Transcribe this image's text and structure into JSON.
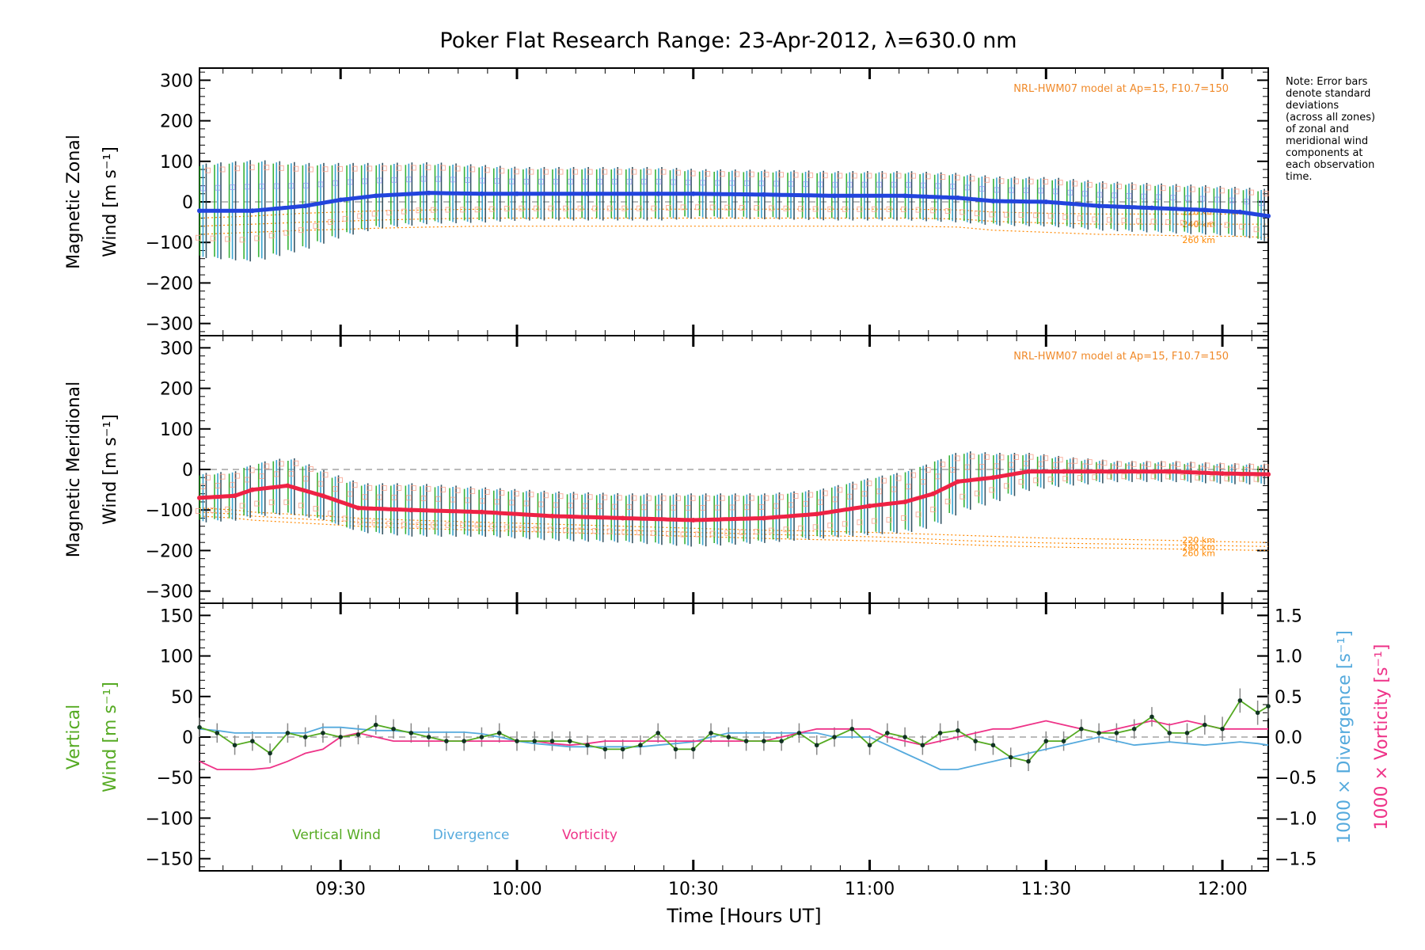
{
  "title": "Poker Flat Research Range: 23-Apr-2012, λ=630.0 nm",
  "note": "Note: Error bars\ndenote standard\ndeviations\n(across all zones)\nof zonal and\nmeridional wind\ncomponents at\neach observation\ntime.",
  "colors": {
    "zonal": "#2244dd",
    "meridional": "#ee2244",
    "model": "#ff8800",
    "model_text": "#f08a2a",
    "zone_zonal": "#9999ee",
    "zone_merid": "#f7a08a",
    "errbar_green": "#22aa22",
    "errbar_blue": "#2299cc",
    "errbar_dark": "#224455",
    "vertical": "#55aa22",
    "divergence": "#55aadd",
    "vorticity": "#ee3388",
    "vert_errbar": "#888888"
  },
  "xaxis": {
    "label": "Time [Hours UT]",
    "ticks": [
      "09:30",
      "10:00",
      "10:30",
      "11:00",
      "11:30",
      "12:00"
    ],
    "tick_hours": [
      9.5,
      10.0,
      10.5,
      11.0,
      11.5,
      12.0
    ],
    "range_hours": [
      9.1,
      12.13
    ]
  },
  "chart_data": [
    {
      "type": "line",
      "panel": "zonal",
      "ylabel_line1": "Magnetic Zonal",
      "ylabel_line2": "Wind [m s⁻¹]",
      "ylim": [
        -330,
        330
      ],
      "yticks": [
        300,
        200,
        100,
        0,
        -100,
        -200,
        -300
      ],
      "model_text": "NRL-HWM07 model at Ap=15, F10.7=150",
      "model_labels": [
        "220 km",
        "240 km",
        "260 km"
      ],
      "x_hours": [
        9.1,
        9.25,
        9.4,
        9.5,
        9.6,
        9.75,
        9.9,
        10.0,
        10.2,
        10.4,
        10.5,
        10.7,
        10.9,
        11.1,
        11.25,
        11.35,
        11.5,
        11.65,
        11.8,
        11.95,
        12.05,
        12.13
      ],
      "series": [
        {
          "values": [
            -22,
            -22,
            -10,
            5,
            15,
            22,
            20,
            20,
            20,
            20,
            20,
            18,
            15,
            15,
            10,
            2,
            0,
            -10,
            -15,
            -20,
            -25,
            -35
          ],
          "errors": [
            110,
            120,
            100,
            85,
            75,
            70,
            65,
            60,
            60,
            60,
            55,
            55,
            55,
            55,
            55,
            55,
            55,
            55,
            55,
            55,
            55,
            60
          ]
        }
      ],
      "model_curves": [
        {
          "label": "220 km",
          "values": [
            -40,
            -35,
            -28,
            -25,
            -22,
            -20,
            -18,
            -18,
            -18,
            -18,
            -18,
            -18,
            -18,
            -18,
            -20,
            -25,
            -28,
            -30,
            -30,
            -30,
            -30,
            -30
          ]
        },
        {
          "label": "240 km",
          "values": [
            -60,
            -55,
            -50,
            -48,
            -45,
            -42,
            -40,
            -40,
            -40,
            -40,
            -40,
            -40,
            -40,
            -40,
            -42,
            -48,
            -52,
            -55,
            -55,
            -55,
            -55,
            -55
          ]
        },
        {
          "label": "260 km",
          "values": [
            -80,
            -75,
            -70,
            -68,
            -65,
            -62,
            -60,
            -60,
            -60,
            -60,
            -60,
            -60,
            -60,
            -60,
            -62,
            -70,
            -75,
            -80,
            -82,
            -85,
            -85,
            -88
          ]
        }
      ]
    },
    {
      "type": "line",
      "panel": "meridional",
      "ylabel_line1": "Magnetic Meridional",
      "ylabel_line2": "Wind [m s⁻¹]",
      "ylim": [
        -330,
        330
      ],
      "yticks": [
        300,
        200,
        100,
        0,
        -100,
        -200,
        -300
      ],
      "model_text": "NRL-HWM07 model at Ap=15, F10.7=150",
      "model_labels": [
        "220 km",
        "240 km",
        "260 km"
      ],
      "x_hours": [
        9.1,
        9.2,
        9.25,
        9.35,
        9.45,
        9.55,
        9.7,
        9.9,
        10.1,
        10.3,
        10.5,
        10.7,
        10.85,
        11.0,
        11.1,
        11.18,
        11.25,
        11.35,
        11.45,
        11.55,
        11.7,
        11.85,
        12.0,
        12.13
      ],
      "series": [
        {
          "values": [
            -70,
            -65,
            -50,
            -40,
            -65,
            -95,
            -100,
            -105,
            -115,
            -120,
            -125,
            -120,
            -110,
            -90,
            -80,
            -60,
            -30,
            -20,
            -5,
            -5,
            -5,
            -5,
            -10,
            -12
          ],
          "errors": [
            55,
            55,
            60,
            65,
            55,
            55,
            60,
            55,
            55,
            55,
            60,
            55,
            55,
            65,
            70,
            75,
            70,
            55,
            40,
            30,
            20,
            20,
            20,
            20
          ]
        }
      ],
      "model_curves": [
        {
          "label": "220 km",
          "values": [
            -95,
            -100,
            -105,
            -110,
            -115,
            -120,
            -125,
            -130,
            -135,
            -140,
            -145,
            -150,
            -152,
            -155,
            -158,
            -160,
            -162,
            -165,
            -168,
            -170,
            -172,
            -175,
            -178,
            -180
          ]
        },
        {
          "label": "240 km",
          "values": [
            -105,
            -110,
            -115,
            -120,
            -125,
            -130,
            -135,
            -140,
            -145,
            -150,
            -155,
            -160,
            -163,
            -166,
            -169,
            -172,
            -175,
            -178,
            -180,
            -182,
            -184,
            -186,
            -188,
            -190
          ]
        },
        {
          "label": "260 km",
          "values": [
            -115,
            -120,
            -125,
            -130,
            -135,
            -140,
            -145,
            -150,
            -155,
            -160,
            -165,
            -170,
            -173,
            -176,
            -179,
            -182,
            -185,
            -188,
            -190,
            -192,
            -194,
            -196,
            -198,
            -200
          ]
        }
      ]
    },
    {
      "type": "line",
      "panel": "vertical",
      "ylabel_line1": "Vertical",
      "ylabel_line2": "Wind [m s⁻¹]",
      "ylim": [
        -165,
        165
      ],
      "yticks": [
        150,
        100,
        50,
        0,
        -50,
        -100,
        -150
      ],
      "y2label_div": "1000 × Divergence [s⁻¹]",
      "y2label_vort": "1000 × Vorticity [s⁻¹]",
      "y2lim": [
        -1.65,
        1.65
      ],
      "y2ticks": [
        1.5,
        1.0,
        0.5,
        0.0,
        -0.5,
        -1.0,
        -1.5
      ],
      "legend": [
        "Vertical Wind",
        "Divergence",
        "Vorticity"
      ],
      "x_hours": [
        9.1,
        9.15,
        9.2,
        9.25,
        9.3,
        9.35,
        9.4,
        9.45,
        9.5,
        9.55,
        9.6,
        9.65,
        9.7,
        9.75,
        9.8,
        9.85,
        9.9,
        9.95,
        10.0,
        10.05,
        10.1,
        10.15,
        10.2,
        10.25,
        10.3,
        10.35,
        10.4,
        10.45,
        10.5,
        10.55,
        10.6,
        10.65,
        10.7,
        10.75,
        10.8,
        10.85,
        10.9,
        10.95,
        11.0,
        11.05,
        11.1,
        11.15,
        11.2,
        11.25,
        11.3,
        11.35,
        11.4,
        11.45,
        11.5,
        11.55,
        11.6,
        11.65,
        11.7,
        11.75,
        11.8,
        11.85,
        11.9,
        11.95,
        12.0,
        12.05,
        12.1,
        12.13
      ],
      "series": [
        {
          "name": "Vertical Wind",
          "values": [
            12,
            5,
            -10,
            -5,
            -20,
            5,
            0,
            5,
            0,
            3,
            15,
            10,
            5,
            0,
            -5,
            -5,
            0,
            5,
            -5,
            -5,
            -5,
            -5,
            -10,
            -15,
            -15,
            -10,
            5,
            -15,
            -15,
            5,
            0,
            -5,
            -5,
            -5,
            5,
            -10,
            0,
            10,
            -10,
            5,
            0,
            -10,
            5,
            8,
            -5,
            -10,
            -25,
            -30,
            -5,
            -5,
            10,
            5,
            5,
            10,
            25,
            5,
            5,
            15,
            10,
            45,
            30,
            38
          ],
          "errors": [
            12,
            12,
            12,
            12,
            12,
            12,
            12,
            12,
            12,
            12,
            12,
            12,
            12,
            12,
            12,
            12,
            12,
            12,
            12,
            12,
            12,
            12,
            12,
            12,
            12,
            12,
            12,
            12,
            12,
            12,
            12,
            12,
            12,
            12,
            12,
            12,
            12,
            12,
            12,
            12,
            12,
            12,
            12,
            12,
            12,
            12,
            12,
            12,
            12,
            12,
            12,
            12,
            12,
            12,
            12,
            12,
            12,
            12,
            15,
            15,
            15,
            15
          ]
        },
        {
          "name": "Divergence",
          "values": [
            0.1,
            0.08,
            0.05,
            0.05,
            0.05,
            0.05,
            0.05,
            0.12,
            0.12,
            0.1,
            0.08,
            0.08,
            0.06,
            0.06,
            0.06,
            0.06,
            0.04,
            0.0,
            -0.05,
            -0.08,
            -0.1,
            -0.12,
            -0.12,
            -0.12,
            -0.12,
            -0.12,
            -0.1,
            -0.08,
            -0.06,
            0.0,
            0.05,
            0.05,
            0.05,
            0.05,
            0.05,
            0.05,
            0.0,
            0.0,
            0.0,
            -0.1,
            -0.2,
            -0.3,
            -0.4,
            -0.4,
            -0.35,
            -0.3,
            -0.25,
            -0.2,
            -0.15,
            -0.1,
            -0.05,
            0.0,
            -0.05,
            -0.1,
            -0.08,
            -0.06,
            -0.08,
            -0.1,
            -0.08,
            -0.06,
            -0.08,
            -0.1
          ]
        },
        {
          "name": "Vorticity",
          "values": [
            -0.3,
            -0.4,
            -0.4,
            -0.4,
            -0.38,
            -0.3,
            -0.2,
            -0.15,
            0.0,
            0.05,
            0.0,
            -0.05,
            -0.05,
            -0.05,
            -0.05,
            -0.05,
            -0.05,
            -0.05,
            -0.05,
            -0.05,
            -0.08,
            -0.1,
            -0.08,
            -0.05,
            -0.05,
            -0.05,
            -0.05,
            -0.05,
            -0.05,
            -0.05,
            -0.05,
            -0.05,
            -0.05,
            0.0,
            0.05,
            0.1,
            0.1,
            0.1,
            0.1,
            0.0,
            -0.05,
            -0.1,
            -0.05,
            0.0,
            0.05,
            0.1,
            0.1,
            0.15,
            0.2,
            0.15,
            0.1,
            0.05,
            0.1,
            0.15,
            0.2,
            0.15,
            0.2,
            0.15,
            0.1,
            0.1,
            0.1,
            0.1
          ]
        }
      ]
    }
  ]
}
